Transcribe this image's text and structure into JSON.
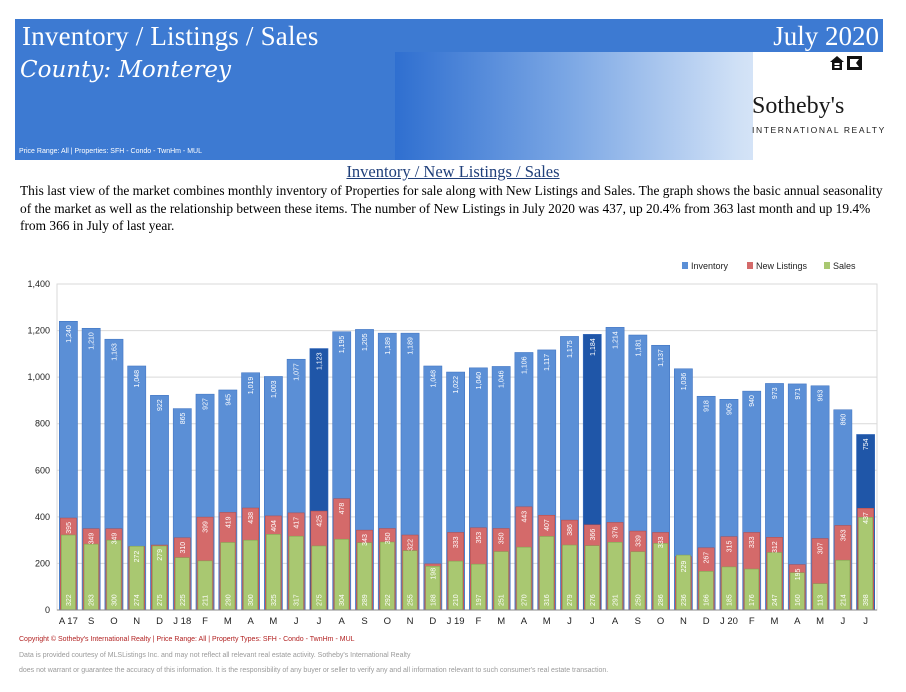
{
  "header": {
    "title": "Inventory / Listings / Sales",
    "date": "July 2020",
    "county": "County:  Monterey",
    "price_range": "Price Range:  All | Properties:  SFH - Condo - TwnHm - MUL",
    "brand_name": "Sotheby's",
    "brand_sub": "INTERNATIONAL REALTY"
  },
  "section": {
    "title": "Inventory / New Listings / Sales",
    "paragraph": "This last view of the market combines monthly inventory of Properties for sale along with New Listings and Sales.  The graph shows the basic annual seasonality of the market as well as the relationship between these items.  The number of New Listings in July 2020 was 437, up 20.4% from 363 last month and up 19.4% from 366 in July of last year."
  },
  "colors": {
    "inventory": "#5b8fd6",
    "inventory_highlight": "#1f56a8",
    "new_listings": "#d46a6a",
    "sales": "#a9c871",
    "header_blue": "#3d7ad2"
  },
  "chart_data": {
    "type": "bar",
    "legend": [
      "Inventory",
      "New Listings",
      "Sales"
    ],
    "legend_position": "top-right",
    "ylim": [
      0,
      1400
    ],
    "yticks": [
      "0",
      "200",
      "400",
      "600",
      "800",
      "1,000",
      "1,200",
      "1,400"
    ],
    "grid": true,
    "categories": [
      "A 17",
      "S",
      "O",
      "N",
      "D",
      "J 18",
      "F",
      "M",
      "A",
      "M",
      "J",
      "J",
      "A",
      "S",
      "O",
      "N",
      "D",
      "J 19",
      "F",
      "M",
      "A",
      "M",
      "J",
      "J",
      "A",
      "S",
      "O",
      "N",
      "D",
      "J 20",
      "F",
      "M",
      "A",
      "M",
      "J",
      "J"
    ],
    "highlight": [
      11,
      23,
      35
    ],
    "series": [
      {
        "name": "Inventory",
        "values": [
          1240,
          1210,
          1163,
          1048,
          922,
          865,
          927,
          945,
          1019,
          1003,
          1077,
          1123,
          1195,
          1205,
          1189,
          1189,
          1048,
          1022,
          1040,
          1046,
          1106,
          1117,
          1175,
          1184,
          1214,
          1181,
          1137,
          1036,
          918,
          905,
          940,
          973,
          971,
          963,
          860,
          754
        ],
        "labels": [
          "1,240",
          "1,210",
          "1,163",
          "1,048",
          "922",
          "865",
          "927",
          "945",
          "1,019",
          "1,003",
          "1,077",
          "1,123",
          "1,195",
          "1,205",
          "1,189",
          "1,189",
          "1,048",
          "1,022",
          "1,040",
          "1,046",
          "1,106",
          "1,117",
          "1,175",
          "1,184",
          "1,214",
          "1,181",
          "1,137",
          "1,036",
          "918",
          "905",
          "940",
          "973",
          "971",
          "963",
          "860",
          "754"
        ]
      },
      {
        "name": "New Listings",
        "values": [
          395,
          349,
          349,
          272,
          279,
          310,
          399,
          419,
          438,
          404,
          417,
          425,
          478,
          343,
          350,
          322,
          198,
          333,
          353,
          350,
          443,
          407,
          386,
          366,
          376,
          339,
          333,
          229,
          267,
          315,
          333,
          312,
          195,
          307,
          363,
          437
        ],
        "labels": [
          "395",
          "349",
          "349",
          "272",
          "279",
          "310",
          "399",
          "419",
          "438",
          "404",
          "417",
          "425",
          "478",
          "343",
          "350",
          "322",
          "198",
          "333",
          "353",
          "350",
          "443",
          "407",
          "386",
          "366",
          "376",
          "339",
          "333",
          "229",
          "267",
          "315",
          "333",
          "312",
          "195",
          "307",
          "363",
          "437"
        ]
      },
      {
        "name": "Sales",
        "values": [
          322,
          283,
          300,
          274,
          275,
          225,
          211,
          290,
          300,
          325,
          317,
          275,
          304,
          289,
          292,
          255,
          188,
          210,
          197,
          251,
          270,
          316,
          279,
          276,
          291,
          250,
          286,
          236,
          166,
          185,
          176,
          247,
          160,
          113,
          214,
          398
        ],
        "labels": [
          "322",
          "283",
          "300",
          "274",
          "275",
          "225",
          "211",
          "290",
          "300",
          "325",
          "317",
          "275",
          "304",
          "289",
          "292",
          "255",
          "188",
          "210",
          "197",
          "251",
          "270",
          "316",
          "279",
          "276",
          "291",
          "250",
          "286",
          "236",
          "166",
          "185",
          "176",
          "247",
          "160",
          "113",
          "214",
          "398"
        ]
      }
    ]
  },
  "footer": {
    "copyright": "Copyright © Sotheby's International Realty  |  Price Range:  All  |  Property Types:  SFH - Condo - TwnHm - MUL",
    "line2": "Data is provided courtesy of MLSListings Inc. and may not reflect all relevant real estate activity.  Sotheby's International Realty",
    "line3": "does not warrant or guarantee the accuracy of this information.  It is the responsibility of any buyer or seller to verify any and all information relevant to such consumer's real estate transaction."
  }
}
